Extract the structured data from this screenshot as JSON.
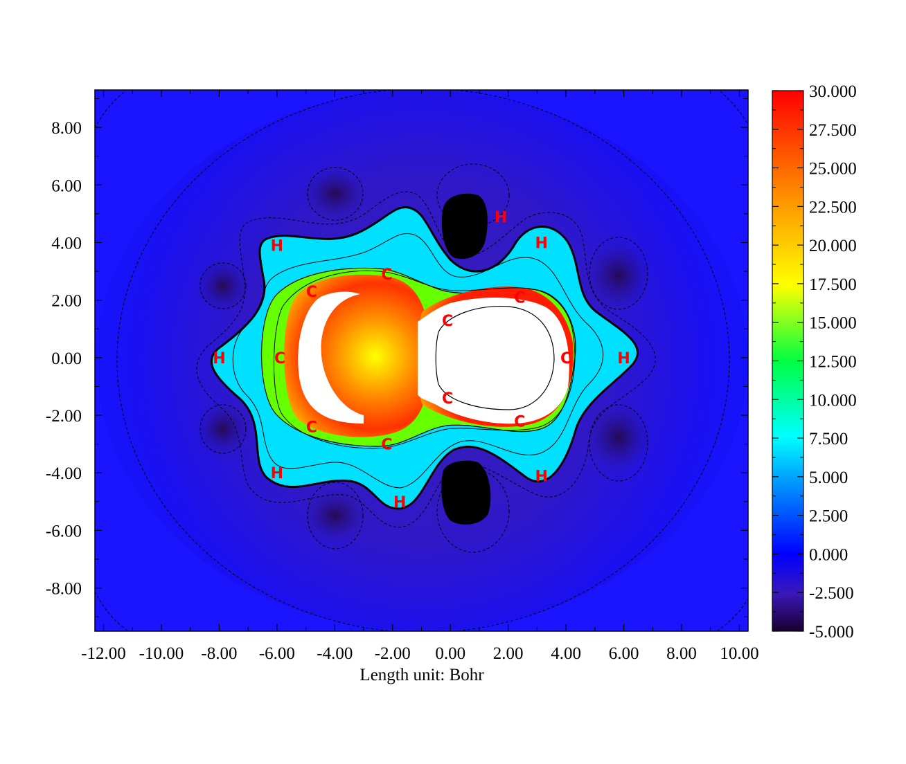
{
  "chart_data": {
    "type": "heatmap",
    "title": "",
    "xlabel": "Length unit: Bohr",
    "ylabel": "",
    "xlim": [
      -12.3,
      10.3
    ],
    "ylim": [
      -9.5,
      9.3
    ],
    "x_ticks": [
      "-12.00",
      "-10.00",
      "-8.00",
      "-6.00",
      "-4.00",
      "-2.00",
      "0.00",
      "2.00",
      "4.00",
      "6.00",
      "8.00",
      "10.00"
    ],
    "x_tick_values": [
      -12,
      -10,
      -8,
      -6,
      -4,
      -2,
      0,
      2,
      4,
      6,
      8,
      10
    ],
    "y_ticks": [
      "8.00",
      "6.00",
      "4.00",
      "2.00",
      "0.00",
      "-2.00",
      "-4.00",
      "-6.00",
      "-8.00"
    ],
    "y_tick_values": [
      8,
      6,
      4,
      2,
      0,
      -2,
      -4,
      -6,
      -8
    ],
    "colorbar": {
      "min": -5.0,
      "max": 30.0,
      "tick_labels": [
        "30.000",
        "27.500",
        "25.000",
        "22.500",
        "20.000",
        "17.500",
        "15.000",
        "12.500",
        "10.000",
        "7.500",
        "5.000",
        "2.500",
        "0.000",
        "-2.500",
        "-5.000"
      ],
      "tick_values": [
        30,
        27.5,
        25,
        22.5,
        20,
        17.5,
        15,
        12.5,
        10,
        7.5,
        5,
        2.5,
        0,
        -2.5,
        -5
      ]
    },
    "atoms": [
      {
        "label": "H",
        "x": 3.15,
        "y": 4.0
      },
      {
        "label": "H",
        "x": 1.75,
        "y": 4.9
      },
      {
        "label": "H",
        "x": -6.0,
        "y": 3.9
      },
      {
        "label": "H",
        "x": -8.0,
        "y": 0.0
      },
      {
        "label": "H",
        "x": -6.0,
        "y": -4.0
      },
      {
        "label": "H",
        "x": -1.75,
        "y": -5.0
      },
      {
        "label": "H",
        "x": 3.15,
        "y": -4.1
      },
      {
        "label": "H",
        "x": 6.0,
        "y": 0.0
      },
      {
        "label": "C",
        "x": -2.2,
        "y": 2.9
      },
      {
        "label": "C",
        "x": -4.8,
        "y": 2.3
      },
      {
        "label": "C",
        "x": -5.9,
        "y": 0.0
      },
      {
        "label": "C",
        "x": -4.8,
        "y": -2.4
      },
      {
        "label": "C",
        "x": -2.2,
        "y": -3.0
      },
      {
        "label": "C",
        "x": -0.1,
        "y": -1.4
      },
      {
        "label": "C",
        "x": -0.1,
        "y": 1.3
      },
      {
        "label": "C",
        "x": 2.4,
        "y": 2.1
      },
      {
        "label": "C",
        "x": 4.0,
        "y": 0.0
      },
      {
        "label": "C",
        "x": 2.4,
        "y": -2.2
      }
    ]
  }
}
